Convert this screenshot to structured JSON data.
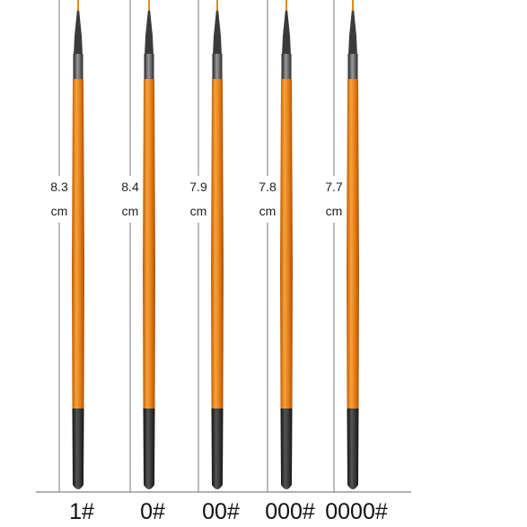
{
  "brushes": [
    {
      "length": "8.3",
      "unit": "cm",
      "size": "1#"
    },
    {
      "length": "8.4",
      "unit": "cm",
      "size": "0#"
    },
    {
      "length": "7.9",
      "unit": "cm",
      "size": "00#"
    },
    {
      "length": "7.8",
      "unit": "cm",
      "size": "000#"
    },
    {
      "length": "7.7",
      "unit": "cm",
      "size": "0000#"
    }
  ]
}
